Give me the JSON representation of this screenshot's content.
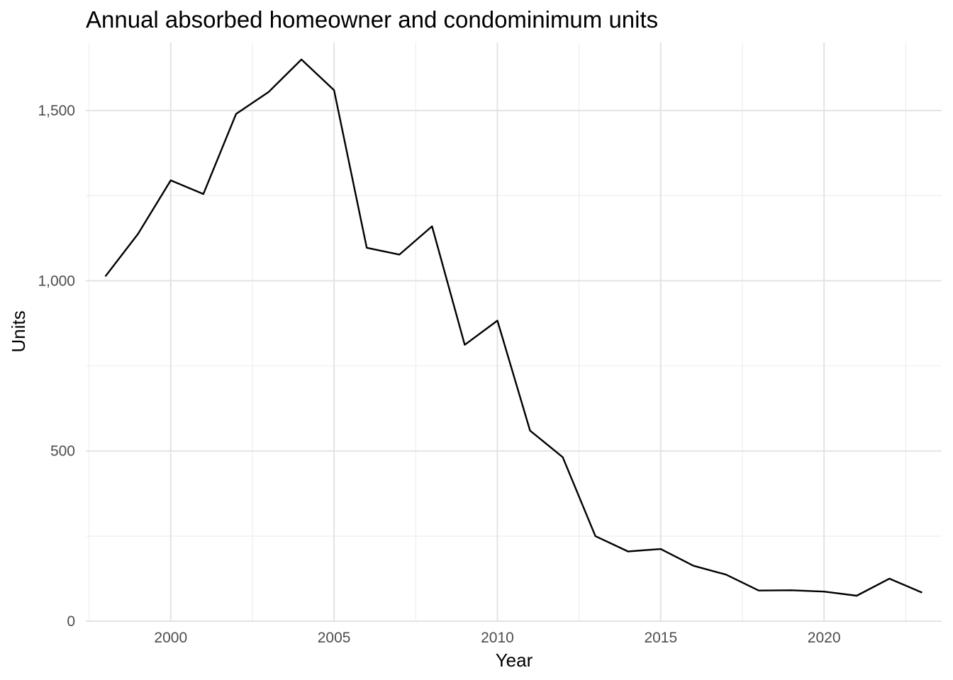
{
  "chart_data": {
    "type": "line",
    "title": "Annual absorbed homeowner and condominimum units",
    "xlabel": "Year",
    "ylabel": "Units",
    "xlim": [
      1997.4,
      2023.6
    ],
    "ylim": [
      0,
      1700
    ],
    "x_ticks": [
      2000,
      2005,
      2010,
      2015,
      2020
    ],
    "x_tick_labels": [
      "2000",
      "2005",
      "2010",
      "2015",
      "2020"
    ],
    "x_minor_ticks": [
      1997.5,
      2002.5,
      2007.5,
      2012.5,
      2017.5,
      2022.5
    ],
    "y_ticks": [
      0,
      500,
      1000,
      1500
    ],
    "y_tick_labels": [
      "0",
      "500",
      "1,000",
      "1,500"
    ],
    "y_minor_ticks": [
      250,
      750,
      1250
    ],
    "grid": true,
    "legend": "none",
    "series": [
      {
        "color": "#000000",
        "x": [
          1998,
          1999,
          2000,
          2001,
          2002,
          2003,
          2004,
          2005,
          2006,
          2007,
          2008,
          2009,
          2010,
          2011,
          2012,
          2013,
          2014,
          2015,
          2016,
          2017,
          2018,
          2019,
          2020,
          2021,
          2022,
          2023
        ],
        "values": [
          1013,
          1138,
          1295,
          1255,
          1490,
          1555,
          1650,
          1560,
          1097,
          1077,
          1160,
          812,
          883,
          560,
          482,
          250,
          205,
          212,
          163,
          137,
          90,
          91,
          87,
          75,
          125,
          84
        ]
      }
    ]
  }
}
